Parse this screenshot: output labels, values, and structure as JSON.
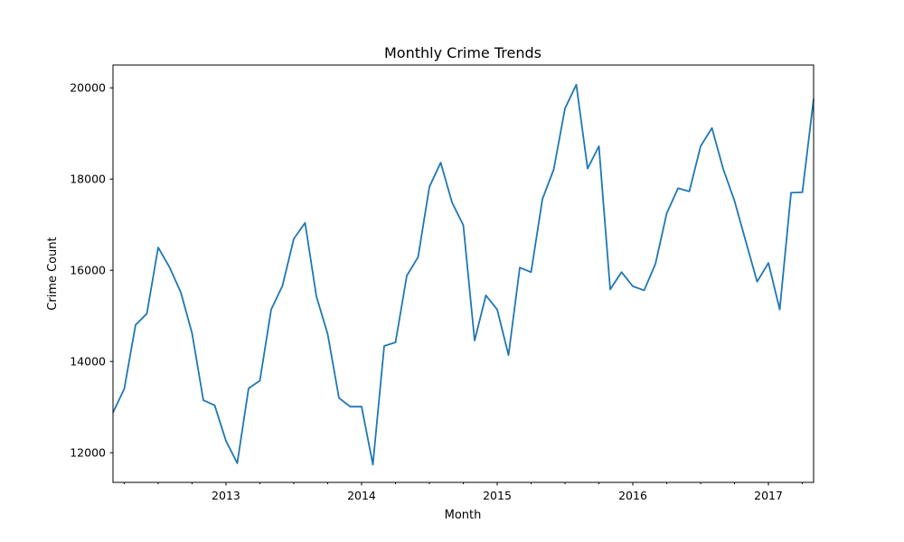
{
  "chart_data": {
    "type": "line",
    "title": "Monthly Crime Trends",
    "xlabel": "Month",
    "ylabel": "Crime Count",
    "grid": false,
    "legend": "none",
    "x_start": "2012-03",
    "x_end": "2017-05",
    "xlim": [
      2012.167,
      2017.333
    ],
    "ylim": [
      11350,
      20500
    ],
    "x_ticks": [
      {
        "value": 2013,
        "label": "2013"
      },
      {
        "value": 2014,
        "label": "2014"
      },
      {
        "value": 2015,
        "label": "2015"
      },
      {
        "value": 2016,
        "label": "2016"
      },
      {
        "value": 2017,
        "label": "2017"
      }
    ],
    "y_ticks": [
      {
        "value": 12000,
        "label": "12000"
      },
      {
        "value": 14000,
        "label": "14000"
      },
      {
        "value": 16000,
        "label": "16000"
      },
      {
        "value": 18000,
        "label": "18000"
      },
      {
        "value": 20000,
        "label": "20000"
      }
    ],
    "series": [
      {
        "name": "Crime Count",
        "color": "#1f77b4",
        "values": [
          12880,
          13400,
          14800,
          15050,
          16500,
          16070,
          15520,
          14620,
          13150,
          13040,
          12260,
          11770,
          13410,
          13580,
          15140,
          15660,
          16690,
          17040,
          15430,
          14600,
          13200,
          13010,
          13010,
          11740,
          14340,
          14420,
          15880,
          16290,
          17830,
          18360,
          17490,
          16990,
          14460,
          15450,
          15140,
          14140,
          16060,
          15960,
          17560,
          18210,
          19550,
          20070,
          18230,
          18720,
          15580,
          15960,
          15650,
          15560,
          16140,
          17250,
          17800,
          17730,
          18720,
          19120,
          18220,
          17520,
          16630,
          15750,
          16160,
          15140,
          17700,
          17710,
          19760
        ]
      }
    ]
  }
}
